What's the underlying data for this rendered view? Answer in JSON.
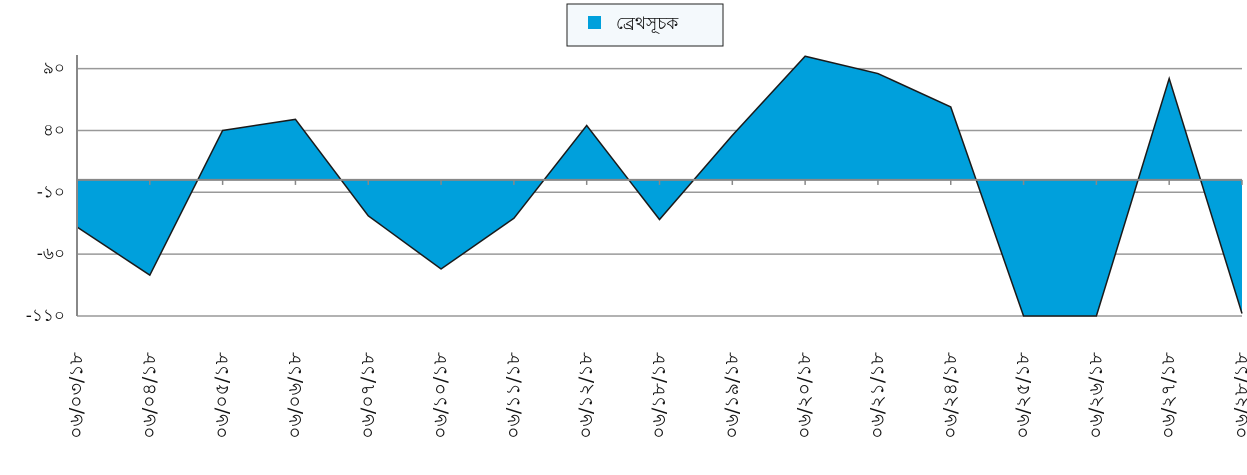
{
  "chart_data": {
    "type": "area",
    "categories": [
      "০৬/০৩/১৮",
      "০৬/০৪/১৮",
      "০৬/০৫/১৮",
      "০৬/০৬/১৮",
      "০৬/০৭/১৮",
      "০৬/১০/১৮",
      "০৬/১১/১৮",
      "০৬/১২/১৮",
      "০৬/১৮/১৮",
      "০৬/১৯/১৮",
      "০৬/২০/১৮",
      "০৬/২১/১৮",
      "০৬/২৪/১৮",
      "০৬/২৫/১৮",
      "০৬/২৬/১৮",
      "০৬/২৭/১৮",
      "০৬/২৮/১৮"
    ],
    "series": [
      {
        "name": "ব্রেথসূচক",
        "color": "#00a0dc",
        "values": [
          -38,
          -77,
          40,
          49,
          -29,
          -72,
          -31,
          44,
          -32,
          36,
          100,
          86,
          59,
          -110,
          -110,
          82,
          -108
        ]
      }
    ],
    "ylim": [
      -110,
      101
    ],
    "yticks": [
      {
        "value": 90,
        "label": "৯০"
      },
      {
        "value": 40,
        "label": "৪০"
      },
      {
        "value": -10,
        "label": "-১০"
      },
      {
        "value": -60,
        "label": "-৬০"
      },
      {
        "value": -110,
        "label": "-১১০"
      }
    ],
    "grid": true,
    "legend": "top"
  }
}
